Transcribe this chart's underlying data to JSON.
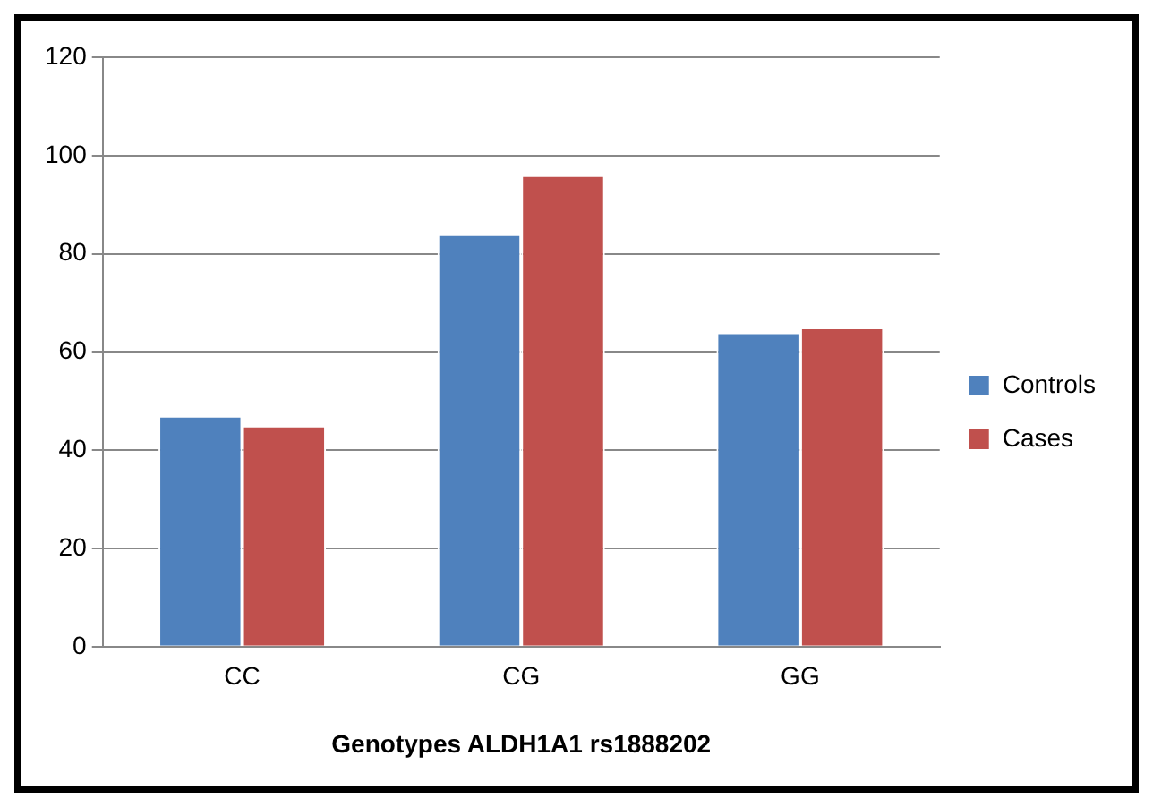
{
  "chart_data": {
    "type": "bar",
    "xlabel": "Genotypes ALDH1A1 rs1888202",
    "categories": [
      "CC",
      "CG",
      "GG"
    ],
    "series": [
      {
        "name": "Controls",
        "color": "#4f81bd",
        "values": [
          47,
          84,
          64
        ]
      },
      {
        "name": "Cases",
        "color": "#c0504d",
        "values": [
          45,
          96,
          65
        ]
      }
    ],
    "ylim": [
      0,
      120
    ],
    "yticks": [
      0,
      20,
      40,
      60,
      80,
      100,
      120
    ],
    "grid": "y",
    "legend": "right"
  }
}
